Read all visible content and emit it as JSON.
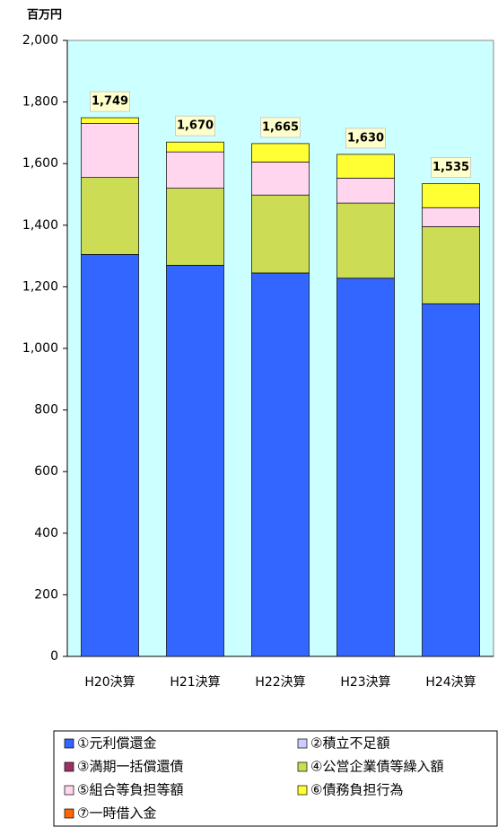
{
  "chart_data": {
    "type": "stacked-bar",
    "y_unit": "百万円",
    "categories": [
      "H20決算",
      "H21決算",
      "H22決算",
      "H23決算",
      "H24決算"
    ],
    "series": [
      {
        "name": "①元利償還金",
        "color": "#3366ff",
        "values": [
          1305,
          1270,
          1245,
          1228,
          1145
        ]
      },
      {
        "name": "②積立不足額",
        "color": "#ccccff",
        "values": [
          0,
          0,
          0,
          0,
          0
        ]
      },
      {
        "name": "③満期一括償還債",
        "color": "#993366",
        "values": [
          0,
          0,
          0,
          0,
          0
        ]
      },
      {
        "name": "④公営企業債等繰入額",
        "color": "#ccdd55",
        "values": [
          250,
          250,
          253,
          244,
          250
        ]
      },
      {
        "name": "⑤組合等負担等額",
        "color": "#ffd6ee",
        "values": [
          175,
          118,
          107,
          81,
          62
        ]
      },
      {
        "name": "⑥債務負担行為",
        "color": "#ffff33",
        "values": [
          19,
          32,
          60,
          77,
          78
        ]
      },
      {
        "name": "⑦一時借入金",
        "color": "#ff6600",
        "values": [
          0,
          0,
          0,
          0,
          0
        ]
      }
    ],
    "totals": {
      "values": [
        1749,
        1670,
        1665,
        1630,
        1535
      ],
      "value_labels": [
        "1,749",
        "1,670",
        "1,665",
        "1,630",
        "1,535"
      ]
    },
    "ylim": [
      0,
      2000
    ],
    "yticks": [
      0,
      200,
      400,
      600,
      800,
      {
        "value": 1000,
        "label": "1,000"
      },
      {
        "value": 1200,
        "label": "1,200"
      },
      {
        "value": 1400,
        "label": "1,400"
      },
      {
        "value": 1600,
        "label": "1,600"
      },
      {
        "value": 1800,
        "label": "1,800"
      },
      {
        "value": 2000,
        "label": "2,000"
      }
    ],
    "plot_background": "#ccffff"
  }
}
